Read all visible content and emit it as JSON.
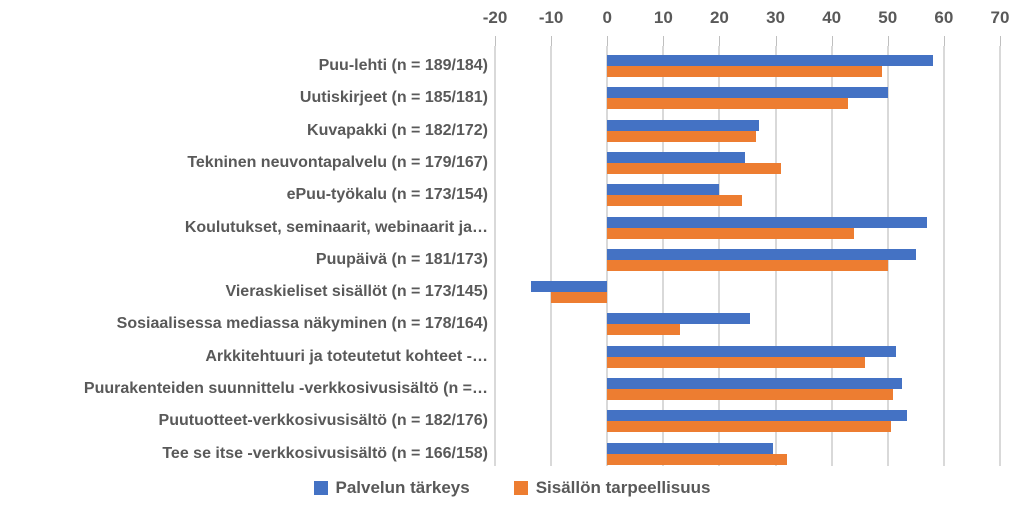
{
  "chart_data": {
    "type": "bar",
    "orientation": "horizontal",
    "title": "",
    "xlabel": "",
    "ylabel": "",
    "xlim": [
      -20,
      70
    ],
    "x_ticks": [
      -20,
      -10,
      0,
      10,
      20,
      30,
      40,
      50,
      60,
      70
    ],
    "grid": true,
    "axis_position": "top",
    "legend_position": "bottom",
    "categories": [
      "Puu-lehti (n = 189/184)",
      "Uutiskirjeet (n = 185/181)",
      "Kuvapakki (n = 182/172)",
      "Tekninen neuvontapalvelu (n = 179/167)",
      "ePuu-työkalu (n = 173/154)",
      "Koulutukset, seminaarit, webinaarit ja…",
      "Puupäivä (n = 181/173)",
      "Vieraskieliset sisällöt (n = 173/145)",
      "Sosiaalisessa mediassa näkyminen (n = 178/164)",
      "Arkkitehtuuri ja toteutetut kohteet -…",
      "Puurakenteiden suunnittelu -verkkosivusisältö (n =…",
      "Puutuotteet-verkkosivusisältö (n = 182/176)",
      "Tee se itse -verkkosivusisältö (n = 166/158)"
    ],
    "series": [
      {
        "name": "Palvelun tärkeys",
        "color": "#4472C4",
        "values": [
          58,
          50,
          27,
          24.5,
          20,
          57,
          55,
          -13.5,
          25.5,
          51.5,
          52.5,
          53.5,
          29.5
        ]
      },
      {
        "name": "Sisällön tarpeellisuus",
        "color": "#ED7D31",
        "values": [
          49,
          43,
          26.5,
          31,
          24,
          44,
          50,
          -10,
          13,
          46,
          51,
          50.5,
          32
        ]
      }
    ]
  },
  "colors": {
    "background": "#FFFFFF",
    "text": "#595959",
    "gridline": "#D9D9D9",
    "tick": "#BFBFBF"
  }
}
